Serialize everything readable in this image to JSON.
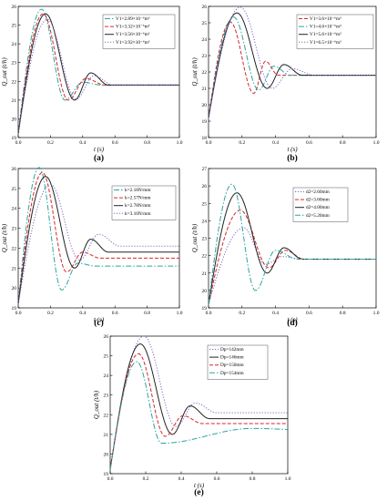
{
  "panels": [
    {
      "label": "(a)",
      "ylabel": "Q_out (t/h)",
      "xlabel": "t (s)"
    },
    {
      "label": "(b)",
      "ylabel": "Q_out (t/h)",
      "xlabel": "t (s)"
    },
    {
      "label": "(c)",
      "ylabel": "Q_out (t/h)",
      "xlabel": "t (s)"
    },
    {
      "label": "(d)",
      "ylabel": "Q_out (t/h)",
      "xlabel": "t (s)"
    },
    {
      "label": "(e)",
      "ylabel": "Q_out (t/h)",
      "xlabel": "t (s)"
    }
  ],
  "chart_data": [
    {
      "type": "line",
      "title": "(a)",
      "xlabel": "t (s)",
      "ylabel": "Q_out (t/h)",
      "xlim": [
        0.0,
        1.0
      ],
      "ylim": [
        19,
        26
      ],
      "xticks": [
        "0.0",
        "0.2",
        "0.4",
        "0.6",
        "0.8",
        "1.0"
      ],
      "yticks": [
        "19",
        "20",
        "21",
        "22",
        "23",
        "24",
        "25",
        "26"
      ],
      "legend_position": "top-right",
      "series": [
        {
          "name": "V1=2.89×10⁻⁶m³",
          "color": "#2ca5a0",
          "dash": "6 2 1.5 2",
          "t_peak": 0.145,
          "y_peak": 25.85,
          "t_min": 0.29,
          "y_min": 21.0,
          "t_over": 0.4,
          "y_over": 21.95,
          "y_end": 21.8
        },
        {
          "name": "V1=3.32×10⁻⁶m³",
          "color": "#d62728",
          "dash": "4 2",
          "t_peak": 0.155,
          "y_peak": 25.6,
          "t_min": 0.31,
          "y_min": 21.0,
          "t_over": 0.42,
          "y_over": 22.15,
          "y_end": 21.8
        },
        {
          "name": "V1=3.56×10⁻⁶m³",
          "color": "#222222",
          "dash": "",
          "t_peak": 0.17,
          "y_peak": 25.6,
          "t_min": 0.35,
          "y_min": 21.0,
          "t_over": 0.45,
          "y_over": 22.45,
          "y_end": 21.8
        },
        {
          "name": "V1=3.92×10⁻⁶m³",
          "color": "#7b68c8",
          "dash": "1.2 1.8",
          "t_peak": 0.18,
          "y_peak": 25.3,
          "t_min": 0.36,
          "y_min": 21.05,
          "t_over": 0.47,
          "y_over": 22.3,
          "y_end": 21.8
        }
      ]
    },
    {
      "type": "line",
      "title": "(b)",
      "xlabel": "t (s)",
      "ylabel": "Q_out (t/h)",
      "xlim": [
        0.0,
        1.0
      ],
      "ylim": [
        18,
        26
      ],
      "xticks": [
        "0.0",
        "0.2",
        "0.4",
        "0.6",
        "0.8",
        "1.0"
      ],
      "yticks": [
        "18",
        "19",
        "20",
        "21",
        "22",
        "23",
        "24",
        "25",
        "26"
      ],
      "legend_position": "top-right",
      "series": [
        {
          "name": "V1=3.6×10⁻⁶m³",
          "color": "#d62728",
          "dash": "4 2",
          "t_peak": 0.13,
          "y_peak": 25.05,
          "t_min": 0.27,
          "y_min": 20.7,
          "t_over": 0.34,
          "y_over": 22.65,
          "y_end": 21.8
        },
        {
          "name": "V1=4.6×10⁻⁶m³",
          "color": "#2ca5a0",
          "dash": "6 2 1.5 2",
          "t_peak": 0.15,
          "y_peak": 25.35,
          "t_min": 0.3,
          "y_min": 20.9,
          "t_over": 0.39,
          "y_over": 22.35,
          "y_end": 21.8
        },
        {
          "name": "V1=5.6×10⁻⁶m³",
          "color": "#222222",
          "dash": "",
          "t_peak": 0.17,
          "y_peak": 25.6,
          "t_min": 0.35,
          "y_min": 21.0,
          "t_over": 0.45,
          "y_over": 22.45,
          "y_end": 21.8
        },
        {
          "name": "V1=6.5×10⁻⁶m³",
          "color": "#7b68c8",
          "dash": "1.2 1.8",
          "t_peak": 0.19,
          "y_peak": 25.95,
          "t_min": 0.38,
          "y_min": 21.0,
          "t_over": 0.5,
          "y_over": 22.2,
          "y_end": 21.8
        }
      ]
    },
    {
      "type": "line",
      "title": "(c)",
      "xlabel": "t (s)",
      "ylabel": "Q_out (t/h)",
      "xlim": [
        0.0,
        1.0
      ],
      "ylim": [
        19,
        26
      ],
      "xticks": [
        "0.0",
        "0.2",
        "0.4",
        "0.6",
        "0.8",
        "1.0"
      ],
      "yticks": [
        "19",
        "20",
        "21",
        "22",
        "23",
        "24",
        "25",
        "26"
      ],
      "legend_position": "top-right",
      "series": [
        {
          "name": "k=2.18N/mm",
          "color": "#2ca5a0",
          "dash": "6 2 1.5 2",
          "t_peak": 0.13,
          "y_peak": 26.05,
          "t_min": 0.27,
          "y_min": 19.9,
          "t_over": 0.37,
          "y_over": 21.25,
          "y_end": 21.1
        },
        {
          "name": "k=2.57N/mm",
          "color": "#d62728",
          "dash": "4 2",
          "t_peak": 0.15,
          "y_peak": 25.8,
          "t_min": 0.3,
          "y_min": 20.8,
          "t_over": 0.4,
          "y_over": 21.8,
          "y_end": 21.5
        },
        {
          "name": "k=2.78N/mm",
          "color": "#222222",
          "dash": "",
          "t_peak": 0.17,
          "y_peak": 25.6,
          "t_min": 0.35,
          "y_min": 21.0,
          "t_over": 0.45,
          "y_over": 22.45,
          "y_end": 21.8
        },
        {
          "name": "k=3.10N/mm",
          "color": "#7b68c8",
          "dash": "1.2 1.8",
          "t_peak": 0.2,
          "y_peak": 25.2,
          "t_min": 0.38,
          "y_min": 21.4,
          "t_over": 0.5,
          "y_over": 22.7,
          "y_end": 22.1
        }
      ]
    },
    {
      "type": "line",
      "title": "(d)",
      "xlabel": "t (s)",
      "ylabel": "Q_out (t/h)",
      "xlim": [
        0.0,
        1.0
      ],
      "ylim": [
        19,
        27
      ],
      "xticks": [
        "0.0",
        "0.2",
        "0.4",
        "0.6",
        "0.8",
        "1.0"
      ],
      "yticks": [
        "19",
        "20",
        "21",
        "22",
        "23",
        "24",
        "25",
        "26",
        "27"
      ],
      "legend_position": "top-right",
      "series": [
        {
          "name": "d2=2.60mm",
          "color": "#7b68c8",
          "dash": "1.2 1.8",
          "t_peak": 0.21,
          "y_peak": 23.6,
          "t_min": 0.34,
          "y_min": 21.5,
          "t_over": 0.44,
          "y_over": 21.95,
          "y_end": 21.8
        },
        {
          "name": "d2=3.60mm",
          "color": "#d62728",
          "dash": "4 2",
          "t_peak": 0.19,
          "y_peak": 24.6,
          "t_min": 0.36,
          "y_min": 21.3,
          "t_over": 0.46,
          "y_over": 22.3,
          "y_end": 21.8
        },
        {
          "name": "d2=4.00mm",
          "color": "#222222",
          "dash": "",
          "t_peak": 0.17,
          "y_peak": 25.6,
          "t_min": 0.35,
          "y_min": 21.0,
          "t_over": 0.45,
          "y_over": 22.45,
          "y_end": 21.8
        },
        {
          "name": "d2=5.20mm",
          "color": "#2ca5a0",
          "dash": "6 2 1.5 2",
          "t_peak": 0.14,
          "y_peak": 26.1,
          "t_min": 0.28,
          "y_min": 20.0,
          "t_over": 0.4,
          "y_over": 22.3,
          "y_end": 21.8
        }
      ]
    },
    {
      "type": "line",
      "title": "(e)",
      "xlabel": "t (s)",
      "ylabel": "Q_out (t/h)",
      "xlim": [
        0.0,
        1.0
      ],
      "ylim": [
        19,
        26
      ],
      "xticks": [
        "0.0",
        "0.2",
        "0.4",
        "0.6",
        "0.8",
        "1.0"
      ],
      "yticks": [
        "19",
        "20",
        "21",
        "22",
        "23",
        "24",
        "25",
        "26"
      ],
      "legend_position": "top-right",
      "series": [
        {
          "name": "Dp=142mm",
          "color": "#7b68c8",
          "dash": "1.2 1.8",
          "t_peak": 0.19,
          "y_peak": 26.0,
          "t_min": 0.37,
          "y_min": 21.4,
          "t_over": 0.48,
          "y_over": 22.6,
          "y_end": 22.1
        },
        {
          "name": "Dp=146mm",
          "color": "#222222",
          "dash": "",
          "t_peak": 0.17,
          "y_peak": 25.6,
          "t_min": 0.35,
          "y_min": 21.0,
          "t_over": 0.45,
          "y_over": 22.45,
          "y_end": 21.8
        },
        {
          "name": "Dp=150mm",
          "color": "#d62728",
          "dash": "4 2",
          "t_peak": 0.16,
          "y_peak": 25.1,
          "t_min": 0.31,
          "y_min": 20.9,
          "t_over": 0.41,
          "y_over": 21.95,
          "y_end": 21.55
        },
        {
          "name": "Dp=154mm",
          "color": "#2ca5a0",
          "dash": "6 2 1.5 2",
          "t_peak": 0.15,
          "y_peak": 24.7,
          "t_min": 0.29,
          "y_min": 20.55,
          "t_over": 0.8,
          "y_over": 21.3,
          "y_end": 21.1
        }
      ]
    }
  ]
}
